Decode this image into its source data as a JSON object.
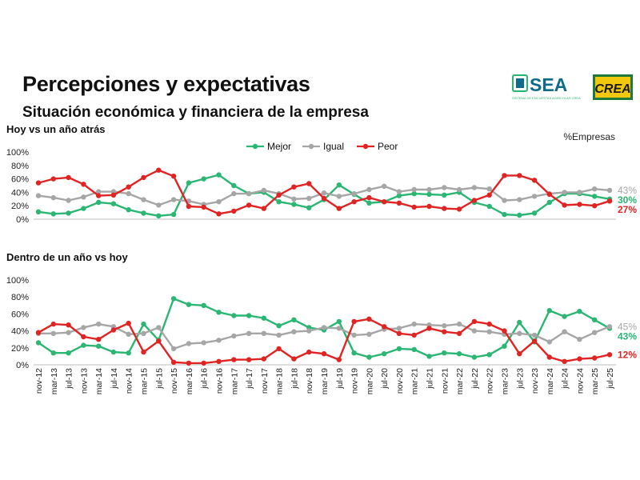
{
  "header": {
    "title": "Percepciones y expectativas",
    "subtitle": "Situación económica y financiera de la empresa",
    "logo_sea": "SEA",
    "logo_sea_caption": "SISTEMA DE ENCUESTAS AGRÍCOLAS CREA",
    "logo_crea": "CREA"
  },
  "colors": {
    "mejor": "#2bb673",
    "igual": "#a6a6a6",
    "peor": "#e02424"
  },
  "chart_data": [
    {
      "type": "line",
      "title": "Hoy vs un año atrás",
      "unit_note": "%Empresas",
      "legend": [
        "Mejor",
        "Igual",
        "Peor"
      ],
      "legend_position": "top-center",
      "ylim": [
        0,
        100
      ],
      "yticks": [
        "0%",
        "20%",
        "40%",
        "60%",
        "80%",
        "100%"
      ],
      "grid": false,
      "categories": [
        "nov-12",
        "mar-13",
        "jul-13",
        "nov-13",
        "mar-14",
        "jul-14",
        "nov-14",
        "mar-15",
        "jul-15",
        "nov-15",
        "mar-16",
        "jul-16",
        "nov-16",
        "mar-17",
        "jul-17",
        "nov-17",
        "mar-18",
        "jul-18",
        "nov-18",
        "mar-19",
        "jul-19",
        "nov-19",
        "mar-20",
        "jul-20",
        "nov-20",
        "mar-21",
        "jul-21",
        "nov-21",
        "mar-22",
        "jul-22",
        "nov-22",
        "mar-23",
        "jul-23",
        "nov-23",
        "mar-24",
        "jul-24",
        "nov-24",
        "mar-25",
        "jul-25"
      ],
      "series": [
        {
          "name": "Mejor",
          "values": [
            11,
            8,
            9,
            16,
            25,
            23,
            14,
            9,
            5,
            7,
            54,
            60,
            66,
            50,
            38,
            40,
            26,
            22,
            17,
            29,
            51,
            37,
            24,
            26,
            35,
            38,
            37,
            36,
            40,
            25,
            19,
            7,
            6,
            9,
            25,
            38,
            38,
            34,
            30
          ],
          "end_label": "30%"
        },
        {
          "name": "Igual",
          "values": [
            35,
            32,
            28,
            33,
            41,
            41,
            38,
            29,
            21,
            29,
            27,
            22,
            26,
            38,
            38,
            43,
            38,
            30,
            31,
            39,
            34,
            38,
            44,
            49,
            41,
            44,
            44,
            47,
            44,
            47,
            45,
            28,
            29,
            34,
            38,
            40,
            40,
            45,
            43
          ],
          "end_label": "43%"
        },
        {
          "name": "Peor",
          "values": [
            54,
            60,
            62,
            52,
            35,
            36,
            48,
            62,
            73,
            64,
            19,
            18,
            8,
            12,
            21,
            16,
            36,
            48,
            53,
            31,
            16,
            26,
            32,
            26,
            24,
            18,
            19,
            16,
            15,
            28,
            36,
            65,
            65,
            58,
            37,
            21,
            22,
            20,
            27
          ],
          "end_label": "27%"
        }
      ]
    },
    {
      "type": "line",
      "title": "Dentro de un año vs hoy",
      "legend": [],
      "ylim": [
        0,
        100
      ],
      "yticks": [
        "0%",
        "20%",
        "40%",
        "60%",
        "80%",
        "100%"
      ],
      "grid": false,
      "categories": [
        "nov-12",
        "mar-13",
        "jul-13",
        "nov-13",
        "mar-14",
        "jul-14",
        "nov-14",
        "mar-15",
        "jul-15",
        "nov-15",
        "mar-16",
        "jul-16",
        "nov-16",
        "mar-17",
        "jul-17",
        "nov-17",
        "mar-18",
        "jul-18",
        "nov-18",
        "mar-19",
        "jul-19",
        "nov-19",
        "mar-20",
        "jul-20",
        "nov-20",
        "mar-21",
        "jul-21",
        "nov-21",
        "mar-22",
        "jul-22",
        "nov-22",
        "mar-23",
        "jul-23",
        "nov-23",
        "mar-24",
        "jul-24",
        "nov-24",
        "mar-25",
        "jul-25"
      ],
      "series": [
        {
          "name": "Mejor",
          "values": [
            26,
            14,
            14,
            23,
            22,
            15,
            14,
            48,
            29,
            78,
            71,
            70,
            62,
            58,
            58,
            55,
            46,
            53,
            44,
            41,
            51,
            14,
            9,
            13,
            19,
            18,
            10,
            14,
            13,
            9,
            12,
            22,
            50,
            27,
            64,
            57,
            63,
            53,
            43
          ],
          "end_label": "43%"
        },
        {
          "name": "Igual",
          "values": [
            37,
            37,
            38,
            44,
            48,
            45,
            36,
            37,
            44,
            19,
            25,
            26,
            29,
            34,
            37,
            37,
            35,
            39,
            40,
            44,
            43,
            35,
            36,
            42,
            43,
            48,
            47,
            46,
            48,
            40,
            39,
            36,
            37,
            35,
            27,
            39,
            30,
            38,
            45
          ],
          "end_label": "45%"
        },
        {
          "name": "Peor",
          "values": [
            38,
            48,
            47,
            33,
            30,
            41,
            49,
            15,
            28,
            3,
            2,
            2,
            4,
            6,
            6,
            7,
            19,
            7,
            15,
            13,
            6,
            51,
            54,
            45,
            37,
            35,
            43,
            39,
            37,
            51,
            48,
            40,
            13,
            28,
            9,
            4,
            7,
            8,
            12
          ],
          "end_label": "12%"
        }
      ]
    }
  ]
}
